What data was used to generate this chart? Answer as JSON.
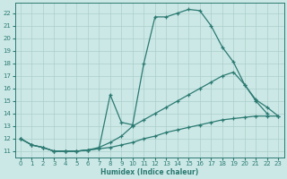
{
  "xlabel": "Humidex (Indice chaleur)",
  "ylabel": "",
  "bg_color": "#cce8e6",
  "grid_color": "#aacfcc",
  "line_color": "#2b7a72",
  "xlim": [
    -0.5,
    23.5
  ],
  "ylim": [
    10.5,
    22.8
  ],
  "yticks": [
    11,
    12,
    13,
    14,
    15,
    16,
    17,
    18,
    19,
    20,
    21,
    22
  ],
  "xticks": [
    0,
    1,
    2,
    3,
    4,
    5,
    6,
    7,
    8,
    9,
    10,
    11,
    12,
    13,
    14,
    15,
    16,
    17,
    18,
    19,
    20,
    21,
    22,
    23
  ],
  "line1_x": [
    0,
    1,
    2,
    3,
    4,
    5,
    6,
    7,
    8,
    9,
    10,
    11,
    12,
    13,
    14,
    15,
    16,
    17,
    18,
    19,
    20,
    21,
    22
  ],
  "line1_y": [
    12.0,
    11.5,
    11.3,
    11.0,
    11.0,
    11.0,
    11.1,
    11.2,
    15.5,
    13.3,
    13.1,
    18.0,
    21.7,
    21.7,
    22.0,
    22.3,
    22.2,
    21.0,
    19.3,
    18.1,
    16.3,
    15.0,
    14.0
  ],
  "line2_x": [
    0,
    1,
    2,
    3,
    4,
    5,
    6,
    7,
    8,
    9,
    10,
    11,
    12,
    13,
    14,
    15,
    16,
    17,
    18,
    19,
    20,
    21,
    22,
    23
  ],
  "line2_y": [
    12.0,
    11.5,
    11.3,
    11.0,
    11.0,
    11.0,
    11.1,
    11.3,
    11.7,
    12.2,
    13.0,
    13.5,
    14.0,
    14.5,
    15.0,
    15.5,
    16.0,
    16.5,
    17.0,
    17.3,
    16.3,
    15.1,
    14.5,
    13.8
  ],
  "line3_x": [
    0,
    1,
    2,
    3,
    4,
    5,
    6,
    7,
    8,
    9,
    10,
    11,
    12,
    13,
    14,
    15,
    16,
    17,
    18,
    19,
    20,
    21,
    22,
    23
  ],
  "line3_y": [
    12.0,
    11.5,
    11.3,
    11.0,
    11.0,
    11.0,
    11.1,
    11.2,
    11.3,
    11.5,
    11.7,
    12.0,
    12.2,
    12.5,
    12.7,
    12.9,
    13.1,
    13.3,
    13.5,
    13.6,
    13.7,
    13.8,
    13.8,
    13.8
  ]
}
